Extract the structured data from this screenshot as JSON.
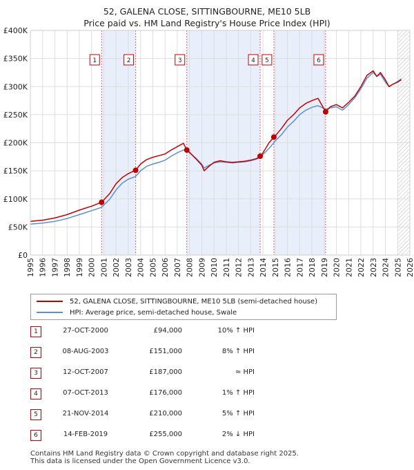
{
  "title": {
    "line1": "52, GALENA CLOSE, SITTINGBOURNE, ME10 5LB",
    "line2": "Price paid vs. HM Land Registry's House Price Index (HPI)"
  },
  "legend": {
    "property": "52, GALENA CLOSE, SITTINGBOURNE, ME10 5LB (semi-detached house)",
    "hpi": "HPI: Average price, semi-detached house, Swale"
  },
  "sales": [
    {
      "num": "1",
      "date": "27-OCT-2000",
      "price": "£94,000",
      "hpi": "10% ↑ HPI"
    },
    {
      "num": "2",
      "date": "08-AUG-2003",
      "price": "£151,000",
      "hpi": "8% ↑ HPI"
    },
    {
      "num": "3",
      "date": "12-OCT-2007",
      "price": "£187,000",
      "hpi": "≈ HPI"
    },
    {
      "num": "4",
      "date": "07-OCT-2013",
      "price": "£176,000",
      "hpi": "1% ↑ HPI"
    },
    {
      "num": "5",
      "date": "21-NOV-2014",
      "price": "£210,000",
      "hpi": "5% ↑ HPI"
    },
    {
      "num": "6",
      "date": "14-FEB-2019",
      "price": "£255,000",
      "hpi": "2% ↓ HPI"
    }
  ],
  "footer": {
    "line1": "Contains HM Land Registry data © Crown copyright and database right 2025.",
    "line2": "This data is licensed under the Open Government Licence v3.0."
  },
  "colors": {
    "property": "#c00000",
    "hpi": "#5b8fd0",
    "shade": "#e8eefa",
    "grid": "#dddddd",
    "marker_line": "#e06060"
  },
  "chart_data": {
    "type": "line",
    "xlim": [
      1995,
      2026
    ],
    "ylim": [
      0,
      400000
    ],
    "y_ticks": [
      0,
      50000,
      100000,
      150000,
      200000,
      250000,
      300000,
      350000,
      400000
    ],
    "y_tick_labels": [
      "£0",
      "£50K",
      "£100K",
      "£150K",
      "£200K",
      "£250K",
      "£300K",
      "£350K",
      "£400K"
    ],
    "x_ticks": [
      1995,
      1996,
      1997,
      1998,
      1999,
      2000,
      2001,
      2002,
      2003,
      2004,
      2005,
      2006,
      2007,
      2008,
      2009,
      2010,
      2011,
      2012,
      2013,
      2014,
      2015,
      2016,
      2017,
      2018,
      2019,
      2020,
      2021,
      2022,
      2023,
      2024,
      2025,
      2026
    ],
    "grid": true,
    "shaded_ranges": [
      [
        2000.82,
        2003.6
      ],
      [
        2007.78,
        2013.77
      ],
      [
        2014.89,
        2019.12
      ]
    ],
    "hatched_from": 2025.0,
    "series": [
      {
        "name": "52, GALENA CLOSE, SITTINGBOURNE, ME10 5LB (semi-detached house)",
        "x": [
          1995,
          1996,
          1997,
          1998,
          1999,
          2000,
          2000.82,
          2001.5,
          2002,
          2002.5,
          2003,
          2003.6,
          2004,
          2004.5,
          2005,
          2005.5,
          2006,
          2006.5,
          2007,
          2007.5,
          2007.78,
          2008,
          2008.5,
          2009,
          2009.2,
          2009.6,
          2010,
          2010.5,
          2011,
          2011.5,
          2012,
          2012.5,
          2013,
          2013.5,
          2013.77,
          2014,
          2014.5,
          2014.89,
          2015,
          2015.5,
          2016,
          2016.5,
          2017,
          2017.5,
          2018,
          2018.5,
          2019.12,
          2019.5,
          2020,
          2020.5,
          2021,
          2021.5,
          2022,
          2022.5,
          2023,
          2023.3,
          2023.6,
          2024,
          2024.3,
          2024.6,
          2025,
          2025.3
        ],
        "y": [
          60000,
          62000,
          66000,
          72000,
          80000,
          87000,
          94000,
          110000,
          127000,
          138000,
          145000,
          151000,
          162000,
          170000,
          174000,
          177000,
          180000,
          187000,
          193000,
          199000,
          187000,
          183000,
          172000,
          160000,
          150000,
          158000,
          165000,
          168000,
          166000,
          165000,
          166000,
          167000,
          169000,
          172000,
          176000,
          182000,
          200000,
          210000,
          212000,
          225000,
          240000,
          250000,
          262000,
          270000,
          275000,
          279000,
          255000,
          264000,
          268000,
          262000,
          272000,
          283000,
          300000,
          320000,
          328000,
          318000,
          325000,
          312000,
          300000,
          304000,
          308000,
          312000
        ]
      },
      {
        "name": "HPI: Average price, semi-detached house, Swale",
        "x": [
          1995,
          1996,
          1997,
          1998,
          1999,
          2000,
          2000.82,
          2001.5,
          2002,
          2002.5,
          2003,
          2003.6,
          2004,
          2004.5,
          2005,
          2005.5,
          2006,
          2006.5,
          2007,
          2007.5,
          2007.78,
          2008,
          2008.5,
          2009,
          2009.2,
          2009.6,
          2010,
          2010.5,
          2011,
          2011.5,
          2012,
          2012.5,
          2013,
          2013.5,
          2013.77,
          2014,
          2014.5,
          2014.89,
          2015,
          2015.5,
          2016,
          2016.5,
          2017,
          2017.5,
          2018,
          2018.5,
          2019.12,
          2019.5,
          2020,
          2020.5,
          2021,
          2021.5,
          2022,
          2022.5,
          2023,
          2023.3,
          2023.6,
          2024,
          2024.3,
          2024.6,
          2025,
          2025.3
        ],
        "y": [
          55000,
          57000,
          60000,
          65000,
          72000,
          79000,
          85000,
          100000,
          116000,
          128000,
          135000,
          140000,
          150000,
          158000,
          162000,
          165000,
          169000,
          176000,
          182000,
          187000,
          186000,
          182000,
          173000,
          162000,
          155000,
          160000,
          164000,
          166000,
          165000,
          164000,
          165000,
          166000,
          168000,
          171000,
          174000,
          179000,
          190000,
          200000,
          203000,
          214000,
          228000,
          238000,
          250000,
          258000,
          263000,
          266000,
          260000,
          262000,
          264000,
          258000,
          268000,
          280000,
          296000,
          315000,
          325000,
          318000,
          322000,
          308000,
          300000,
          304000,
          309000,
          314000
        ]
      }
    ],
    "sales": [
      {
        "label": "1",
        "x": 2000.82,
        "y": 94000
      },
      {
        "label": "2",
        "x": 2003.6,
        "y": 151000
      },
      {
        "label": "3",
        "x": 2007.78,
        "y": 187000
      },
      {
        "label": "4",
        "x": 2013.77,
        "y": 176000
      },
      {
        "label": "5",
        "x": 2014.89,
        "y": 210000
      },
      {
        "label": "6",
        "x": 2019.12,
        "y": 255000
      }
    ]
  }
}
